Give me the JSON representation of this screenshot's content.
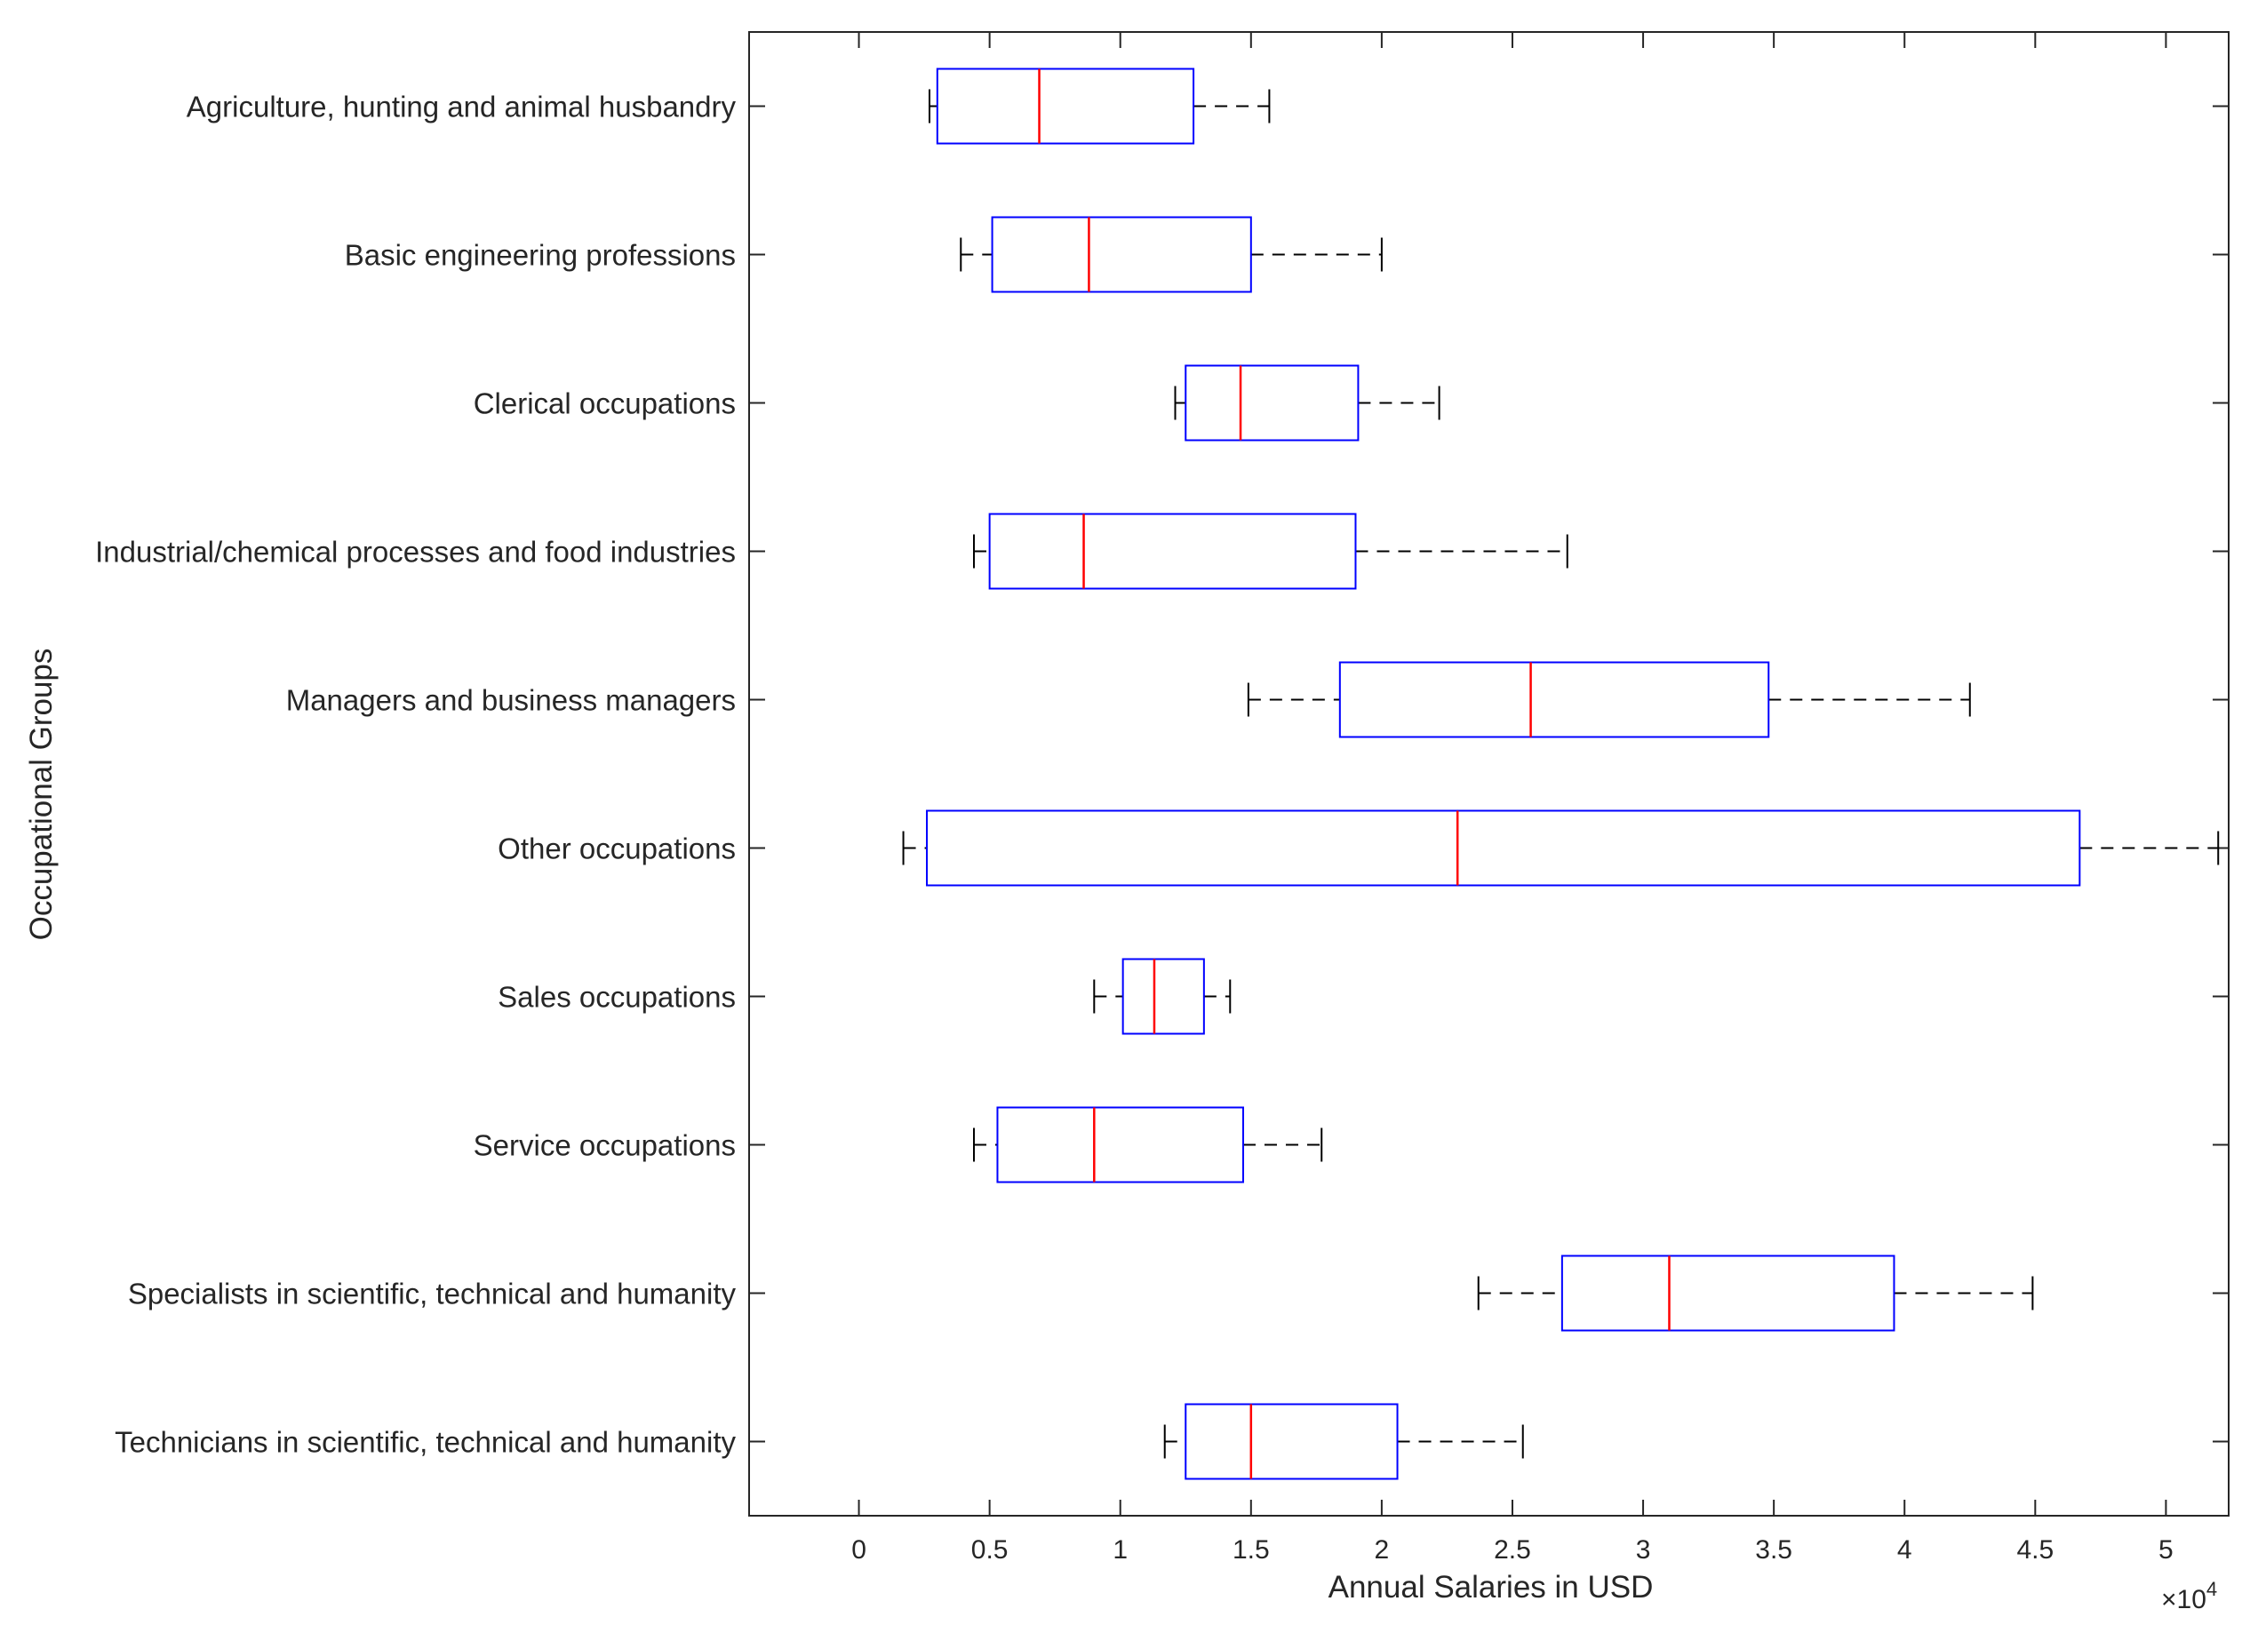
{
  "chart_data": {
    "type": "boxplot",
    "orientation": "horizontal",
    "xlabel": "Annual Salaries in USD",
    "ylabel": "Occupational Groups",
    "x_multiplier_label": "×10",
    "x_multiplier_exponent": "4",
    "xlim": [
      -0.42,
      5.24
    ],
    "x_ticks": [
      0,
      0.5,
      1,
      1.5,
      2,
      2.5,
      3,
      3.5,
      4,
      4.5,
      5
    ],
    "x_tick_labels": [
      "0",
      "0.5",
      "1",
      "1.5",
      "2",
      "2.5",
      "3",
      "3.5",
      "4",
      "4.5",
      "5"
    ],
    "units_note": "values in units of 10^4 USD",
    "series": [
      {
        "name": "Agriculture, hunting and animal husbandry",
        "whisker_low": 0.27,
        "q1": 0.3,
        "median": 0.69,
        "q3": 1.28,
        "whisker_high": 1.57
      },
      {
        "name": "Basic engineering professions",
        "whisker_low": 0.39,
        "q1": 0.51,
        "median": 0.88,
        "q3": 1.5,
        "whisker_high": 2.0
      },
      {
        "name": "Clerical occupations",
        "whisker_low": 1.21,
        "q1": 1.25,
        "median": 1.46,
        "q3": 1.91,
        "whisker_high": 2.22
      },
      {
        "name": "Industrial/chemical processes and food industries",
        "whisker_low": 0.44,
        "q1": 0.5,
        "median": 0.86,
        "q3": 1.9,
        "whisker_high": 2.71
      },
      {
        "name": "Managers and business managers",
        "whisker_low": 1.49,
        "q1": 1.84,
        "median": 2.57,
        "q3": 3.48,
        "whisker_high": 4.25
      },
      {
        "name": "Other occupations",
        "whisker_low": 0.17,
        "q1": 0.26,
        "median": 2.29,
        "q3": 4.67,
        "whisker_high": 5.2
      },
      {
        "name": "Sales occupations",
        "whisker_low": 0.9,
        "q1": 1.01,
        "median": 1.13,
        "q3": 1.32,
        "whisker_high": 1.42
      },
      {
        "name": "Service occupations",
        "whisker_low": 0.44,
        "q1": 0.53,
        "median": 0.9,
        "q3": 1.47,
        "whisker_high": 1.77
      },
      {
        "name": "Specialists in scientific, technical and humanity",
        "whisker_low": 2.37,
        "q1": 2.69,
        "median": 3.1,
        "q3": 3.96,
        "whisker_high": 4.49
      },
      {
        "name": "Technicians in scientific, technical and humanity",
        "whisker_low": 1.17,
        "q1": 1.25,
        "median": 1.5,
        "q3": 2.06,
        "whisker_high": 2.54
      }
    ],
    "colors": {
      "box": "#0000ff",
      "median": "#ff0000",
      "whisker": "#000000",
      "axes": "#262626"
    },
    "grid": false
  }
}
